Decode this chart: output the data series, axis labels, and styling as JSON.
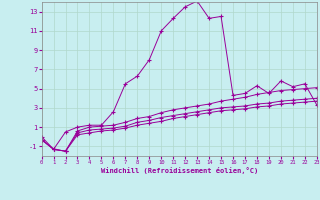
{
  "xlabel": "Windchill (Refroidissement éolien,°C)",
  "xlim": [
    0,
    23
  ],
  "ylim": [
    -2,
    14
  ],
  "xticks": [
    0,
    1,
    2,
    3,
    4,
    5,
    6,
    7,
    8,
    9,
    10,
    11,
    12,
    13,
    14,
    15,
    16,
    17,
    18,
    19,
    20,
    21,
    22,
    23
  ],
  "yticks": [
    -1,
    1,
    3,
    5,
    7,
    9,
    11,
    13
  ],
  "background_color": "#c8eef0",
  "grid_color": "#b0d8cc",
  "line_color": "#990099",
  "line1_y": [
    0.0,
    -1.3,
    0.5,
    1.0,
    1.2,
    1.2,
    2.6,
    5.5,
    6.3,
    8.0,
    11.0,
    12.3,
    13.5,
    14.1,
    12.3,
    12.5,
    4.3,
    4.5,
    5.3,
    4.5,
    5.8,
    5.2,
    5.5,
    3.3
  ],
  "line2_y": [
    -0.3,
    -1.3,
    -1.5,
    0.6,
    1.0,
    1.1,
    1.2,
    1.5,
    1.9,
    2.1,
    2.5,
    2.8,
    3.0,
    3.2,
    3.4,
    3.7,
    3.9,
    4.1,
    4.4,
    4.6,
    4.8,
    4.9,
    5.0,
    5.1
  ],
  "line3_y": [
    -0.3,
    -1.3,
    -1.5,
    0.4,
    0.7,
    0.8,
    0.9,
    1.1,
    1.5,
    1.7,
    2.0,
    2.2,
    2.4,
    2.6,
    2.8,
    3.0,
    3.1,
    3.2,
    3.4,
    3.5,
    3.7,
    3.8,
    3.9,
    4.0
  ],
  "line4_y": [
    -0.3,
    -1.3,
    -1.5,
    0.2,
    0.4,
    0.6,
    0.7,
    0.9,
    1.2,
    1.4,
    1.6,
    1.9,
    2.1,
    2.3,
    2.5,
    2.7,
    2.8,
    2.9,
    3.1,
    3.2,
    3.4,
    3.5,
    3.6,
    3.7
  ]
}
